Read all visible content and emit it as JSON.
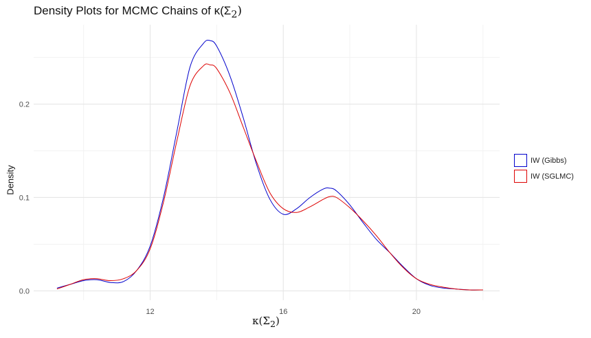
{
  "chart_data": {
    "type": "line",
    "title": "Density Plots for MCMC Chains of κ(Σ",
    "title_sub": "2",
    "title_end": ")",
    "xlabel": "κ(Σ",
    "xlabel_sub": "2",
    "xlabel_end": ")",
    "ylabel": "Density",
    "xlim": [
      8.5,
      22.5
    ],
    "ylim": [
      -0.01,
      0.285
    ],
    "x_ticks": [
      12,
      16,
      20
    ],
    "x_tick_labels": [
      "12",
      "16",
      "20"
    ],
    "y_ticks": [
      0.0,
      0.1,
      0.2
    ],
    "y_tick_labels": [
      "0.0",
      "0.1",
      "0.2"
    ],
    "grid": true,
    "legend_position": "right",
    "series": [
      {
        "name": "IW (Gibbs)",
        "color": "#0000cc",
        "x": [
          9.2,
          9.6,
          10.0,
          10.4,
          10.8,
          11.2,
          11.6,
          12.0,
          12.4,
          12.8,
          13.2,
          13.6,
          13.8,
          14.0,
          14.4,
          14.8,
          15.2,
          15.6,
          16.0,
          16.4,
          16.8,
          17.2,
          17.4,
          17.6,
          18.0,
          18.4,
          18.8,
          19.2,
          19.6,
          20.0,
          20.4,
          20.8,
          21.2,
          21.6,
          22.0
        ],
        "y": [
          0.003,
          0.007,
          0.011,
          0.012,
          0.009,
          0.01,
          0.022,
          0.048,
          0.1,
          0.17,
          0.24,
          0.265,
          0.268,
          0.262,
          0.23,
          0.185,
          0.135,
          0.098,
          0.082,
          0.088,
          0.1,
          0.109,
          0.11,
          0.107,
          0.092,
          0.073,
          0.055,
          0.041,
          0.026,
          0.013,
          0.006,
          0.003,
          0.002,
          0.001,
          0.001
        ]
      },
      {
        "name": "IW (SGLMC)",
        "color": "#dd0000",
        "x": [
          9.2,
          9.6,
          10.0,
          10.4,
          10.8,
          11.2,
          11.6,
          12.0,
          12.4,
          12.8,
          13.2,
          13.6,
          13.8,
          14.0,
          14.4,
          14.8,
          15.2,
          15.6,
          16.0,
          16.4,
          16.8,
          17.2,
          17.4,
          17.6,
          18.0,
          18.4,
          18.8,
          19.2,
          19.6,
          20.0,
          20.4,
          20.8,
          21.2,
          21.6,
          22.0
        ],
        "y": [
          0.002,
          0.007,
          0.012,
          0.013,
          0.011,
          0.013,
          0.022,
          0.045,
          0.095,
          0.16,
          0.22,
          0.241,
          0.242,
          0.238,
          0.212,
          0.175,
          0.138,
          0.105,
          0.088,
          0.084,
          0.09,
          0.098,
          0.101,
          0.1,
          0.089,
          0.075,
          0.059,
          0.041,
          0.025,
          0.013,
          0.007,
          0.004,
          0.002,
          0.001,
          0.001
        ]
      }
    ]
  }
}
